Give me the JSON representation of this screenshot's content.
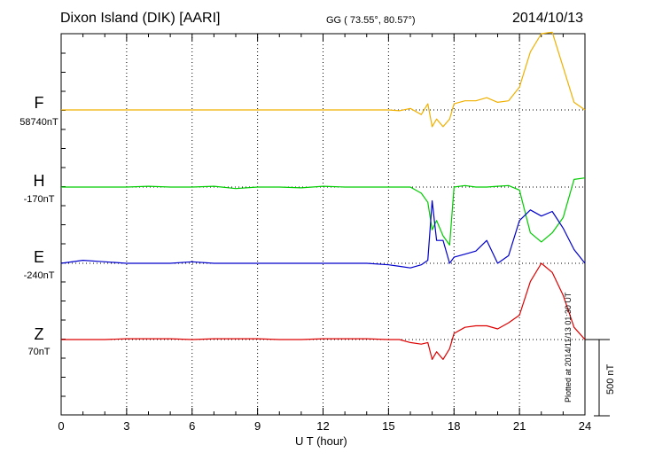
{
  "header": {
    "station": "Dixon Island (DIK)  [AARI]",
    "coords": "GG ( 73.55°,  80.57°)",
    "date": "2014/10/13"
  },
  "footer": {
    "xlabel": "U T (hour)",
    "plotted": "Plotted at 2014/11/13 01:30 UT",
    "scale": "500 nT"
  },
  "chart_data": {
    "type": "line",
    "xlabel": "U T (hour)",
    "xlim": [
      0,
      24
    ],
    "x_ticks": [
      "0",
      "3",
      "6",
      "9",
      "12",
      "15",
      "18",
      "21",
      "24"
    ],
    "grid": true,
    "scale_bar": "500 nT",
    "x": [
      0,
      1,
      2,
      3,
      4,
      5,
      6,
      7,
      8,
      9,
      10,
      11,
      12,
      13,
      14,
      15,
      15.5,
      16,
      16.5,
      16.8,
      17,
      17.2,
      17.5,
      17.8,
      18,
      18.5,
      19,
      19.5,
      20,
      20.5,
      21,
      21.5,
      22,
      22.5,
      23,
      23.5,
      24
    ],
    "series": [
      {
        "name": "F",
        "baseline": "58740nT",
        "color": "#f0b000",
        "values": [
          0,
          0,
          0,
          0,
          0,
          0,
          0,
          0,
          0,
          0,
          0,
          0,
          0,
          0,
          0,
          0,
          -5,
          10,
          -30,
          40,
          -110,
          -60,
          -110,
          -60,
          40,
          60,
          60,
          80,
          50,
          60,
          150,
          380,
          500,
          510,
          280,
          50,
          0
        ]
      },
      {
        "name": "H",
        "baseline": "-170nT",
        "color": "#00cc00",
        "values": [
          0,
          0,
          0,
          0,
          5,
          0,
          0,
          5,
          -10,
          0,
          0,
          -5,
          5,
          0,
          0,
          0,
          0,
          0,
          -40,
          -100,
          -280,
          -220,
          -320,
          -380,
          0,
          10,
          0,
          0,
          5,
          10,
          -20,
          -300,
          -360,
          -300,
          -200,
          50,
          60
        ]
      },
      {
        "name": "E",
        "baseline": "-240nT",
        "color": "#0000cc",
        "values": [
          0,
          20,
          10,
          0,
          0,
          0,
          10,
          0,
          0,
          0,
          0,
          0,
          0,
          0,
          0,
          -10,
          -20,
          -30,
          -10,
          20,
          410,
          150,
          150,
          0,
          40,
          60,
          80,
          150,
          0,
          50,
          280,
          350,
          310,
          340,
          230,
          90,
          0
        ]
      },
      {
        "name": "Z",
        "baseline": "70nT",
        "color": "#dd0000",
        "values": [
          0,
          0,
          0,
          5,
          5,
          5,
          0,
          5,
          5,
          5,
          0,
          0,
          5,
          5,
          5,
          0,
          0,
          -20,
          -30,
          -20,
          -130,
          -80,
          -130,
          -60,
          40,
          80,
          90,
          90,
          70,
          110,
          160,
          380,
          500,
          440,
          290,
          80,
          0
        ]
      }
    ]
  }
}
